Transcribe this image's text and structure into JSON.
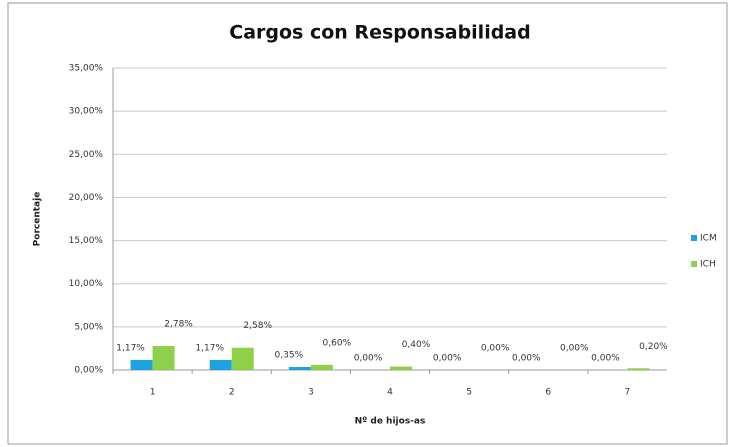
{
  "chart_data": {
    "type": "bar",
    "title": "Cargos con Responsabilidad",
    "xlabel": "Nº de hijos-as",
    "ylabel": "Porcentaje",
    "categories": [
      "1",
      "2",
      "3",
      "4",
      "5",
      "6",
      "7"
    ],
    "series": [
      {
        "name": "ICM",
        "color": "#1fa3e0",
        "values": [
          1.17,
          1.17,
          0.35,
          0,
          0,
          0,
          0
        ],
        "value_labels": [
          "1,17%",
          "1,17%",
          "0,35%",
          "0,00%",
          "0,00%",
          "0,00%",
          "0,00%"
        ]
      },
      {
        "name": "ICH",
        "color": "#8ed04a",
        "values": [
          2.78,
          2.58,
          0.6,
          0.4,
          0,
          0,
          0.2
        ],
        "value_labels": [
          "2,78%",
          "2,58%",
          "0,60%",
          "0,40%",
          "0,00%",
          "0,00%",
          "0,20%"
        ]
      }
    ],
    "ylim": [
      0,
      35
    ],
    "yticks": [
      {
        "value": 0,
        "label": "0,00%"
      },
      {
        "value": 5,
        "label": "5,00%"
      },
      {
        "value": 10,
        "label": "10,00%"
      },
      {
        "value": 15,
        "label": "15,00%"
      },
      {
        "value": 20,
        "label": "20,00%"
      },
      {
        "value": 25,
        "label": "25,00%"
      },
      {
        "value": 30,
        "label": "30,00%"
      },
      {
        "value": 35,
        "label": "35,00%"
      }
    ],
    "grid": true,
    "legend": "right"
  }
}
